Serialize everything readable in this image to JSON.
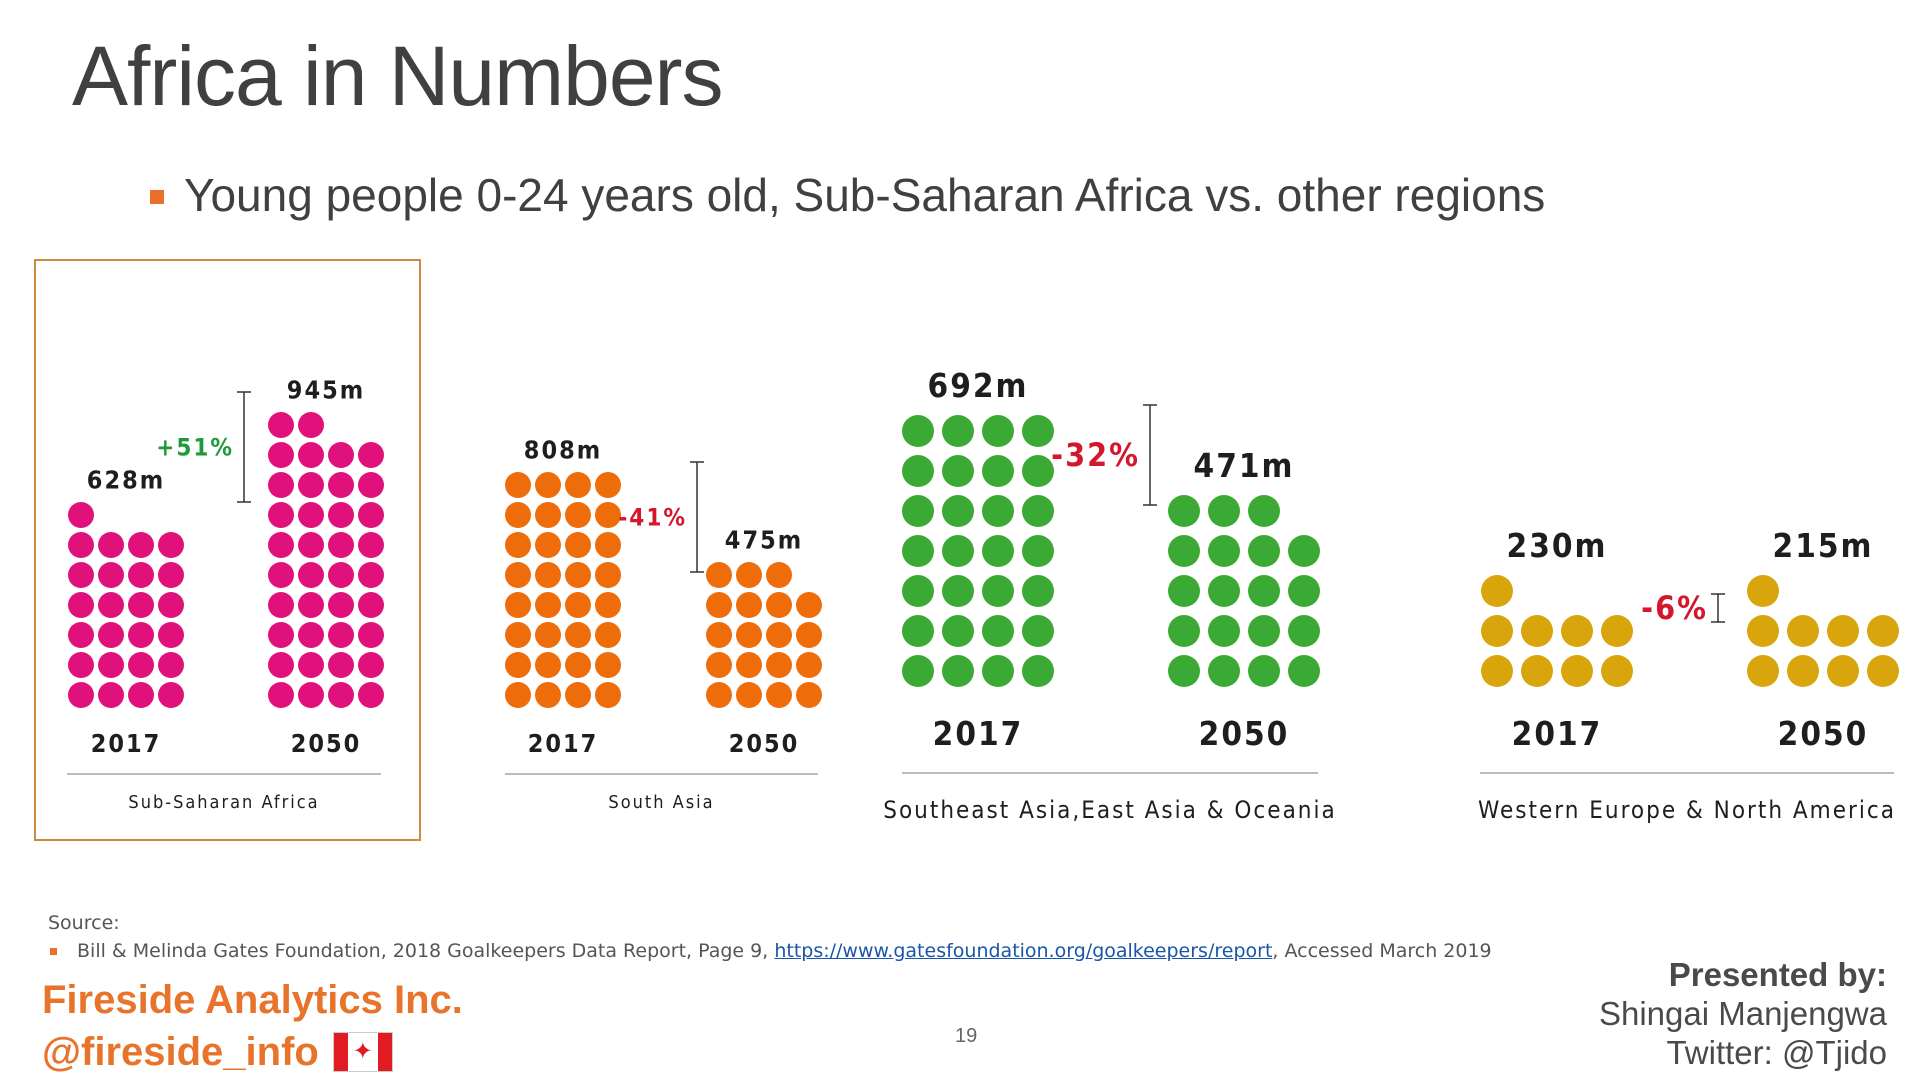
{
  "slide": {
    "title": "Africa in Numbers",
    "bullet": "Young people 0-24 years old, Sub-Saharan Africa vs. other regions"
  },
  "chart_data": {
    "type": "pictograph",
    "unit": "m",
    "regions": [
      {
        "name": "Sub-Saharan Africa",
        "color": "#e0117a",
        "highlighted": true,
        "years": [
          "2017",
          "2050"
        ],
        "values": [
          628,
          945
        ],
        "value_labels": [
          "628m",
          "945m"
        ],
        "change_label": "+51%",
        "change_color": "#1e9a3a"
      },
      {
        "name": "South Asia",
        "color": "#ef6c0a",
        "highlighted": false,
        "years": [
          "2017",
          "2050"
        ],
        "values": [
          808,
          475
        ],
        "value_labels": [
          "808m",
          "475m"
        ],
        "change_label": "-41%",
        "change_color": "#d3182e"
      },
      {
        "name": "Southeast Asia,East Asia & Oceania",
        "color": "#3aaa35",
        "highlighted": false,
        "years": [
          "2017",
          "2050"
        ],
        "values": [
          692,
          471
        ],
        "value_labels": [
          "692m",
          "471m"
        ],
        "change_label": "-32%",
        "change_color": "#d3182e"
      },
      {
        "name": "Western Europe & North America",
        "color": "#d9a50c",
        "highlighted": false,
        "years": [
          "2017",
          "2050"
        ],
        "values": [
          230,
          215
        ],
        "value_labels": [
          "230m",
          "215m"
        ],
        "change_label": "-6%",
        "change_color": "#d3182e"
      }
    ]
  },
  "source": {
    "label": "Source:",
    "text_before": "Bill & Melinda Gates Foundation, 2018 Goalkeepers Data Report, Page 9, ",
    "link_text": "https://www.gatesfoundation.org/goalkeepers/report",
    "text_after": ", Accessed March 2019"
  },
  "footer": {
    "company": "Fireside Analytics Inc.",
    "handle": "@fireside_info",
    "flag_symbol": "✦",
    "page_number": "19",
    "presenter_label": "Presented by:",
    "presenter_name": "Shingai Manjengwa",
    "presenter_twitter": "Twitter: @Tjido"
  }
}
